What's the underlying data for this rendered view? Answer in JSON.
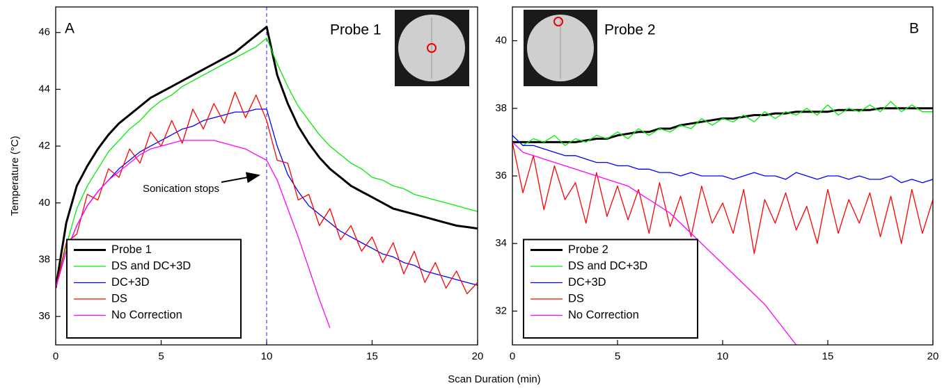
{
  "chart_data": [
    {
      "type": "line",
      "panel_label": "A",
      "probe_label": "Probe 1",
      "annotation": "Sonication stops",
      "xlabel": "Scan Duration (min)",
      "ylabel": "Temperature (°C)",
      "x": [
        0,
        0.5,
        1,
        1.5,
        2,
        2.5,
        3,
        3.5,
        4,
        4.5,
        5,
        5.5,
        6,
        6.5,
        7,
        7.5,
        8,
        8.5,
        9,
        9.5,
        10,
        10.5,
        11,
        11.5,
        12,
        12.5,
        13,
        13.5,
        14,
        14.5,
        15,
        15.5,
        16,
        16.5,
        17,
        17.5,
        18,
        18.5,
        19,
        19.5,
        20
      ],
      "xlim": [
        0,
        20
      ],
      "xticks": [
        0,
        5,
        10,
        15,
        20
      ],
      "ylim": [
        35,
        46.9
      ],
      "yticks": [
        36,
        38,
        40,
        42,
        44,
        46
      ],
      "vline": 10,
      "legend": "lower left",
      "series": [
        {
          "name": "Probe 1",
          "color": "#000000",
          "width": 3,
          "values": [
            37,
            39.3,
            40.6,
            41.3,
            41.9,
            42.4,
            42.8,
            43.1,
            43.4,
            43.7,
            43.9,
            44.1,
            44.3,
            44.5,
            44.7,
            44.9,
            45.1,
            45.3,
            45.6,
            45.9,
            46.2,
            44.5,
            43.5,
            42.7,
            42.1,
            41.6,
            41.2,
            40.9,
            40.6,
            40.4,
            40.2,
            40.0,
            39.8,
            39.7,
            39.6,
            39.5,
            39.4,
            39.3,
            39.2,
            39.15,
            39.1
          ]
        },
        {
          "name": "DS and DC+3D",
          "color": "#00ee00",
          "width": 1.3,
          "values": [
            37,
            38.5,
            39.8,
            40.6,
            41.2,
            41.8,
            42.2,
            42.6,
            42.9,
            43.3,
            43.6,
            43.8,
            44.1,
            44.3,
            44.5,
            44.7,
            44.9,
            45.1,
            45.3,
            45.5,
            45.8,
            44.9,
            44.1,
            43.4,
            42.9,
            42.4,
            42.0,
            41.7,
            41.4,
            41.2,
            40.9,
            40.8,
            40.6,
            40.5,
            40.3,
            40.2,
            40.1,
            40.0,
            39.9,
            39.8,
            39.7
          ]
        },
        {
          "name": "DC+3D",
          "color": "#0000ff",
          "width": 1.3,
          "values": [
            37,
            38.3,
            39.2,
            39.9,
            40.4,
            40.8,
            41.2,
            41.5,
            41.8,
            42.0,
            42.2,
            42.4,
            42.6,
            42.7,
            42.9,
            43.0,
            43.1,
            43.2,
            43.2,
            43.3,
            43.3,
            42.0,
            41.0,
            40.4,
            39.9,
            39.6,
            39.3,
            39.0,
            38.8,
            38.6,
            38.4,
            38.2,
            38.1,
            37.9,
            37.8,
            37.6,
            37.5,
            37.4,
            37.3,
            37.2,
            37.1
          ]
        },
        {
          "name": "DS",
          "color": "#ff0000",
          "width": 1.3,
          "values": [
            37,
            38.6,
            38.9,
            40.3,
            40.1,
            41.2,
            40.9,
            41.9,
            41.4,
            42.5,
            42.0,
            42.9,
            42.1,
            43.3,
            42.6,
            43.5,
            42.8,
            43.9,
            43.0,
            43.8,
            42.9,
            41.5,
            41.4,
            40.1,
            40.3,
            39.2,
            39.8,
            38.7,
            39.2,
            38.3,
            38.8,
            37.9,
            38.6,
            37.5,
            38.3,
            37.2,
            37.9,
            37.0,
            37.6,
            36.8,
            37.2
          ]
        },
        {
          "name": "No Correction",
          "color": "#ff00ff",
          "width": 1.3,
          "values": [
            37,
            38.3,
            39.2,
            39.9,
            40.4,
            40.8,
            41.1,
            41.4,
            41.7,
            41.9,
            42.0,
            42.1,
            42.2,
            42.2,
            42.2,
            42.2,
            42.1,
            42.0,
            41.9,
            41.7,
            41.5,
            40.8,
            39.8,
            38.8,
            37.7,
            36.6,
            35.6,
            null,
            null,
            null,
            null,
            null,
            null,
            null,
            null,
            null,
            null,
            null,
            null,
            null,
            null
          ]
        }
      ]
    },
    {
      "type": "line",
      "panel_label": "B",
      "probe_label": "Probe 2",
      "x": [
        0,
        0.5,
        1,
        1.5,
        2,
        2.5,
        3,
        3.5,
        4,
        4.5,
        5,
        5.5,
        6,
        6.5,
        7,
        7.5,
        8,
        8.5,
        9,
        9.5,
        10,
        10.5,
        11,
        11.5,
        12,
        12.5,
        13,
        13.5,
        14,
        14.5,
        15,
        15.5,
        16,
        16.5,
        17,
        17.5,
        18,
        18.5,
        19,
        19.5,
        20
      ],
      "xlim": [
        0,
        20
      ],
      "xticks": [
        0,
        5,
        10,
        15,
        20
      ],
      "ylim": [
        31,
        41
      ],
      "yticks": [
        32,
        34,
        36,
        38,
        40
      ],
      "legend": "lower left",
      "series": [
        {
          "name": "Probe 2",
          "color": "#000000",
          "width": 3,
          "values": [
            37.0,
            37.0,
            37.0,
            37.0,
            37.0,
            37.0,
            37.0,
            37.05,
            37.1,
            37.1,
            37.2,
            37.25,
            37.3,
            37.3,
            37.4,
            37.4,
            37.5,
            37.55,
            37.6,
            37.65,
            37.7,
            37.7,
            37.75,
            37.8,
            37.8,
            37.85,
            37.85,
            37.9,
            37.9,
            37.9,
            37.9,
            37.95,
            37.95,
            37.95,
            37.95,
            38.0,
            38.0,
            38.0,
            38.0,
            38.0,
            38.0
          ]
        },
        {
          "name": "DS and DC+3D",
          "color": "#00ee00",
          "width": 1.3,
          "values": [
            37.2,
            36.9,
            37.1,
            37.0,
            37.2,
            36.9,
            37.1,
            37.0,
            37.2,
            37.1,
            37.3,
            37.1,
            37.4,
            37.2,
            37.4,
            37.3,
            37.5,
            37.4,
            37.7,
            37.5,
            37.7,
            37.6,
            37.8,
            37.6,
            37.9,
            37.7,
            37.9,
            37.8,
            38.0,
            37.8,
            38.1,
            37.8,
            38.0,
            37.9,
            38.1,
            37.9,
            38.2,
            37.9,
            38.1,
            37.9,
            37.9
          ]
        },
        {
          "name": "DC+3D",
          "color": "#0000ff",
          "width": 1.3,
          "values": [
            37.2,
            36.9,
            36.9,
            36.8,
            36.7,
            36.6,
            36.6,
            36.5,
            36.4,
            36.4,
            36.3,
            36.3,
            36.2,
            36.2,
            36.1,
            36.1,
            36.0,
            36.1,
            36.0,
            36.0,
            36.0,
            35.9,
            36.0,
            36.1,
            36.0,
            36.0,
            35.9,
            36.1,
            36.0,
            35.9,
            36.0,
            36.0,
            35.9,
            36.0,
            35.9,
            35.9,
            36.0,
            35.8,
            35.9,
            35.8,
            35.9
          ]
        },
        {
          "name": "DS",
          "color": "#ff0000",
          "width": 1.3,
          "values": [
            37.0,
            35.5,
            36.6,
            35.0,
            36.3,
            35.3,
            35.8,
            34.6,
            36.1,
            34.8,
            35.7,
            34.7,
            35.6,
            34.3,
            35.8,
            34.5,
            35.4,
            34.2,
            35.7,
            34.6,
            35.2,
            34.3,
            35.6,
            33.7,
            35.3,
            34.6,
            35.5,
            34.4,
            35.1,
            34.0,
            35.6,
            34.3,
            35.3,
            34.6,
            35.5,
            34.2,
            35.4,
            34.0,
            35.6,
            34.3,
            35.3
          ]
        },
        {
          "name": "No Correction",
          "color": "#ff00ff",
          "width": 1.3,
          "values": [
            37.0,
            36.7,
            36.6,
            36.5,
            36.4,
            36.3,
            36.2,
            36.1,
            36.0,
            35.9,
            35.8,
            35.7,
            35.5,
            35.3,
            35.1,
            34.9,
            34.6,
            34.3,
            34.0,
            33.7,
            33.4,
            33.1,
            32.8,
            32.5,
            32.2,
            31.8,
            31.4,
            31.0,
            null,
            null,
            null,
            null,
            null,
            null,
            null,
            null,
            null,
            null,
            null,
            null,
            null
          ]
        }
      ]
    }
  ]
}
